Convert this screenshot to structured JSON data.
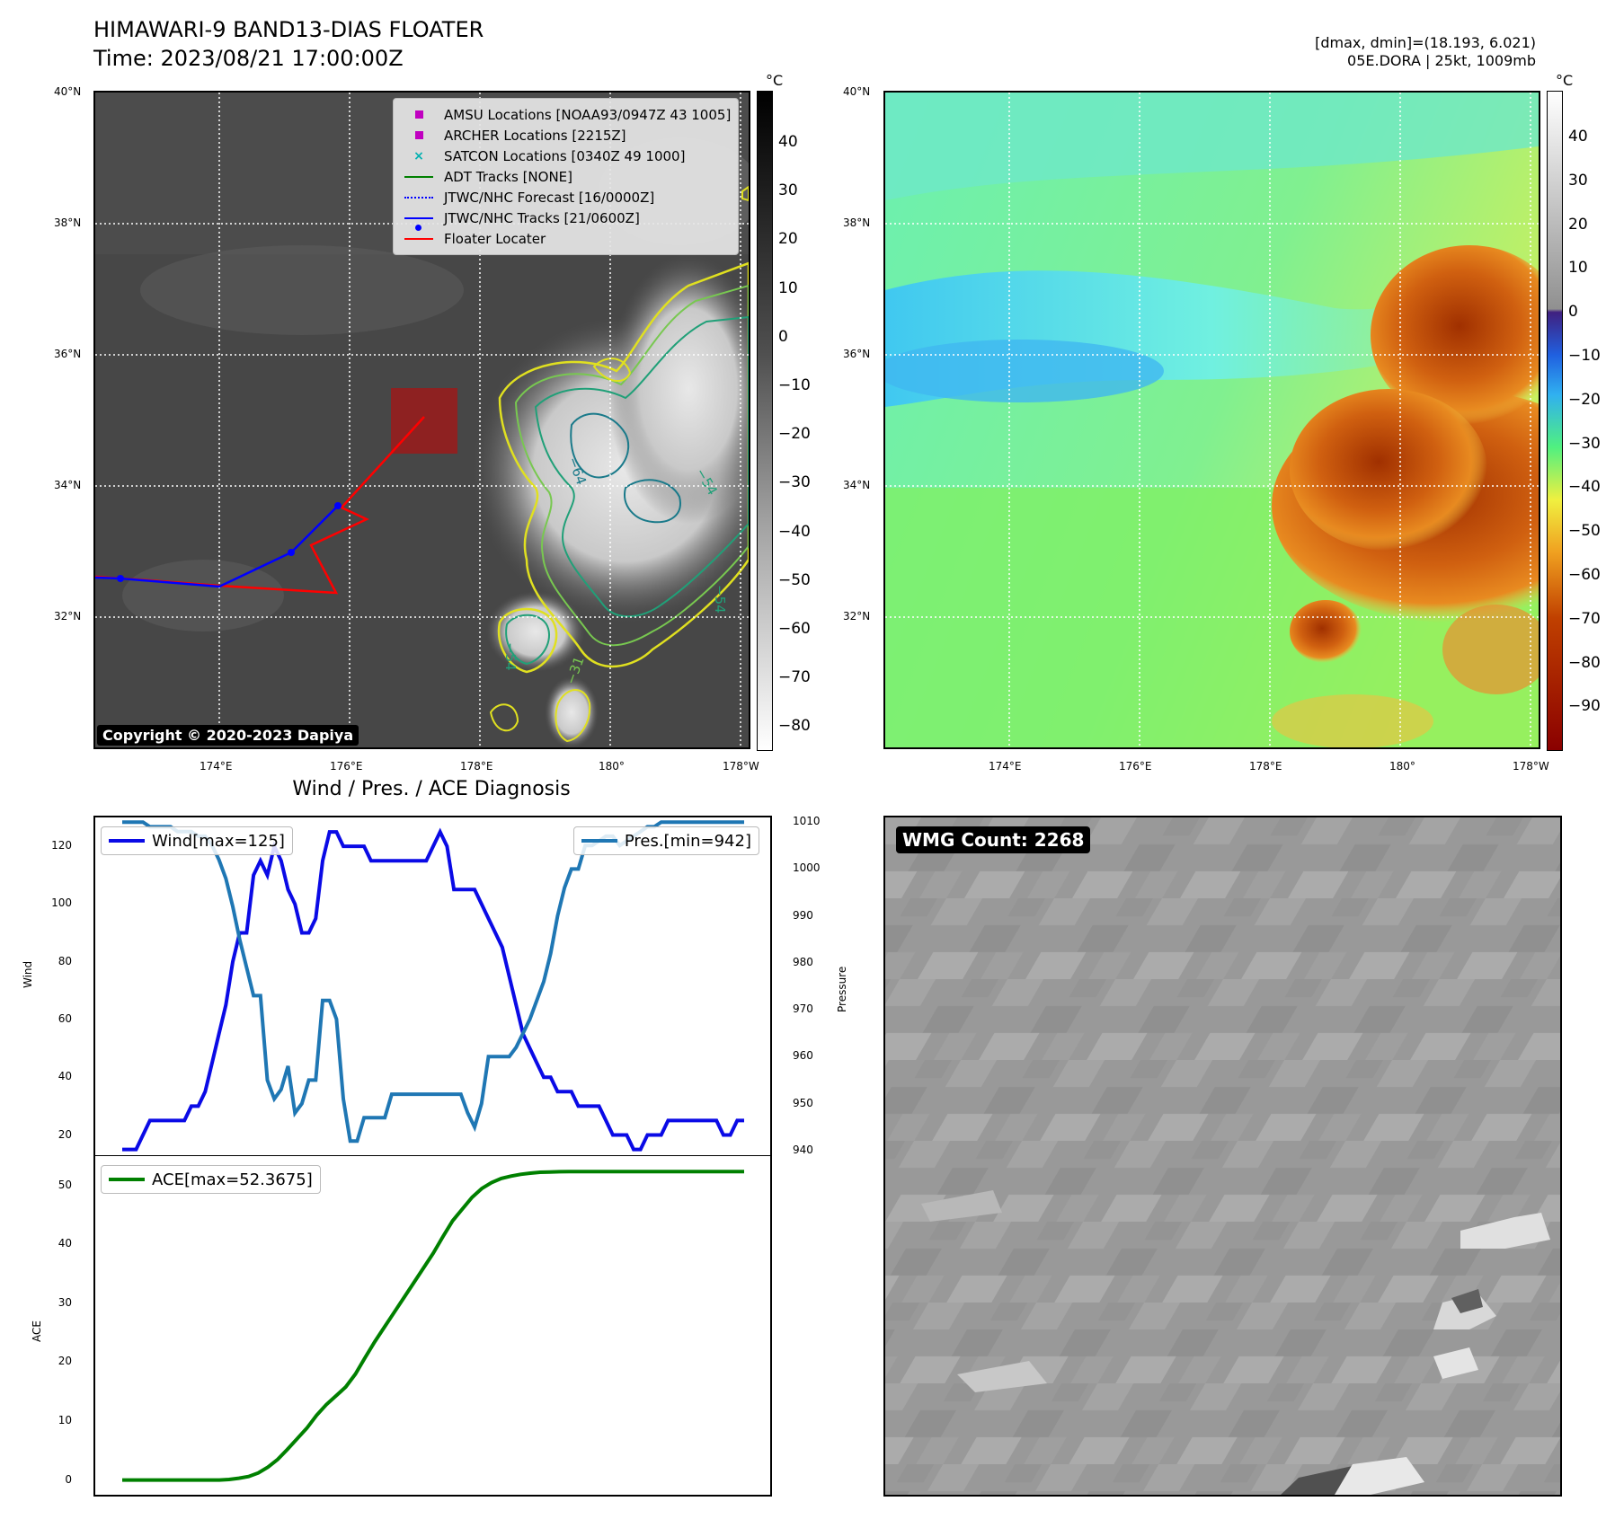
{
  "header": {
    "title_line1": "HIMAWARI-9 BAND13-DIAS FLOATER",
    "title_line2": "Time: 2023/08/21 17:00:00Z",
    "right_line1": "[dmax, dmin]=(18.193, 6.021)",
    "right_line2": "05E.DORA | 25kt, 1009mb"
  },
  "map": {
    "lat_labels": [
      "40°N",
      "38°N",
      "36°N",
      "34°N",
      "32°N"
    ],
    "lon_labels": [
      "174°E",
      "176°E",
      "178°E",
      "180°",
      "178°W"
    ],
    "unit": "°C",
    "gray_colorbar_ticks": [
      "40",
      "30",
      "20",
      "10",
      "0",
      "−10",
      "−20",
      "−30",
      "−40",
      "−50",
      "−60",
      "−70",
      "−80"
    ],
    "color_colorbar_ticks": [
      "40",
      "30",
      "20",
      "10",
      "0",
      "−10",
      "−20",
      "−30",
      "−40",
      "−50",
      "−60",
      "−70",
      "−80",
      "−90"
    ],
    "contour_labels": [
      "−64",
      "−54",
      "−54",
      "−54",
      "−31"
    ],
    "copyright": "Copyright © 2020-2023 Dapiya",
    "legend": [
      {
        "label": "AMSU Locations [NOAA93/0947Z 43 1005]",
        "symbol": "square",
        "color": "#c000c0"
      },
      {
        "label": "ARCHER Locations [2215Z]",
        "symbol": "square",
        "color": "#c000c0"
      },
      {
        "label": "SATCON Locations [0340Z 49 1000]",
        "symbol": "x",
        "color": "#00b0b0"
      },
      {
        "label": "ADT Tracks [NONE]",
        "symbol": "line",
        "color": "#008000"
      },
      {
        "label": "JTWC/NHC Forecast [16/0000Z]",
        "symbol": "dotted",
        "color": "#0000ff"
      },
      {
        "label": "JTWC/NHC Tracks [21/0600Z]",
        "symbol": "line-dot",
        "color": "#0000ff"
      },
      {
        "label": "Floater Locater",
        "symbol": "line",
        "color": "#ff0000"
      }
    ]
  },
  "diagnosis": {
    "title": "Wind / Pres. / ACE Diagnosis",
    "wind_ylabel": "Wind",
    "pres_ylabel": "Pressure",
    "ace_ylabel": "ACE",
    "wind_ticks": [
      "120",
      "100",
      "80",
      "60",
      "40",
      "20"
    ],
    "pres_ticks": [
      "1010",
      "1000",
      "990",
      "980",
      "970",
      "960",
      "950",
      "940"
    ],
    "ace_ticks": [
      "50",
      "40",
      "30",
      "20",
      "10",
      "0"
    ],
    "wind_legend": "Wind[max=125]",
    "pres_legend": "Pres.[min=942]",
    "ace_legend": "ACE[max=52.3675]"
  },
  "wmg": {
    "label": "WMG Count: 2268"
  },
  "colors": {
    "wind": "#0a0ae6",
    "pressure": "#1f77b4",
    "ace": "#008000",
    "track": "#0000ff",
    "floater": "#ff0000"
  },
  "chart_data": [
    {
      "type": "line",
      "title": "Wind / Pres. / ACE Diagnosis",
      "ylabel": "Wind",
      "ylim": [
        13,
        130
      ],
      "series": [
        {
          "name": "Wind[max=125]",
          "values": [
            15,
            15,
            15,
            20,
            25,
            25,
            25,
            25,
            25,
            25,
            30,
            30,
            35,
            45,
            55,
            65,
            80,
            90,
            90,
            110,
            115,
            110,
            120,
            115,
            105,
            100,
            90,
            90,
            95,
            115,
            125,
            125,
            120,
            120,
            120,
            120,
            115,
            115,
            115,
            115,
            115,
            115,
            115,
            115,
            115,
            120,
            125,
            120,
            105,
            105,
            105,
            105,
            100,
            95,
            90,
            85,
            75,
            65,
            55,
            50,
            45,
            40,
            40,
            35,
            35,
            35,
            30,
            30,
            30,
            30,
            25,
            20,
            20,
            20,
            15,
            15,
            20,
            20,
            20,
            25,
            25,
            25,
            25,
            25,
            25,
            25,
            25,
            20,
            20,
            25,
            25
          ]
        }
      ]
    },
    {
      "type": "line",
      "ylabel": "Pressure",
      "ylim": [
        939,
        1011
      ],
      "series": [
        {
          "name": "Pres.[min=942]",
          "values": [
            1010,
            1010,
            1010,
            1010,
            1009,
            1009,
            1009,
            1009,
            1008,
            1008,
            1008,
            1007,
            1007,
            1005,
            1002,
            998,
            992,
            985,
            979,
            973,
            973,
            955,
            951,
            953,
            958,
            948,
            950,
            955,
            955,
            972,
            972,
            968,
            951,
            942,
            942,
            947,
            947,
            947,
            947,
            952,
            952,
            952,
            952,
            952,
            952,
            952,
            952,
            952,
            952,
            952,
            948,
            945,
            950,
            960,
            960,
            960,
            960,
            962,
            965,
            968,
            972,
            976,
            982,
            990,
            996,
            1000,
            1000,
            1005,
            1005,
            1006,
            1007,
            1007,
            1005,
            1006,
            1007,
            1008,
            1009,
            1009,
            1010,
            1010,
            1010,
            1010,
            1010,
            1010,
            1010,
            1010,
            1010,
            1010,
            1010,
            1010,
            1010
          ]
        }
      ]
    },
    {
      "type": "area",
      "ylabel": "ACE",
      "ylim": [
        -2.5,
        55
      ],
      "series": [
        {
          "name": "ACE[max=52.3675]",
          "values": [
            0,
            0,
            0,
            0,
            0,
            0,
            0,
            0,
            0,
            0,
            0,
            0.1,
            0.3,
            0.6,
            1.2,
            2.2,
            3.5,
            5.2,
            7,
            8.8,
            11,
            12.8,
            14.3,
            15.8,
            18,
            20.8,
            23.5,
            26,
            28.5,
            31,
            33.5,
            36,
            38.5,
            41.3,
            44,
            46,
            48,
            49.5,
            50.5,
            51.2,
            51.6,
            51.9,
            52.1,
            52.25,
            52.3,
            52.35,
            52.37,
            52.37,
            52.37,
            52.37,
            52.37,
            52.37,
            52.37,
            52.37,
            52.37,
            52.37,
            52.37,
            52.37,
            52.37,
            52.37,
            52.37,
            52.37,
            52.37,
            52.37,
            52.37
          ]
        }
      ]
    }
  ]
}
